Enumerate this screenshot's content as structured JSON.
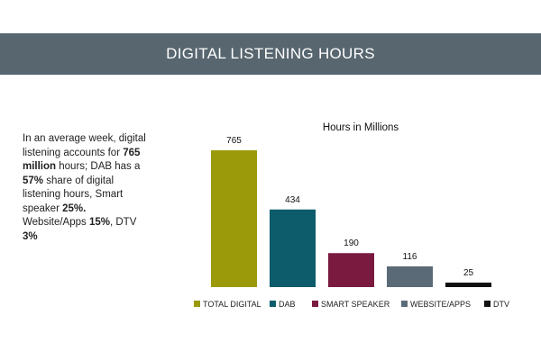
{
  "header": {
    "title": "DIGITAL LISTENING HOURS",
    "background": "#57666f"
  },
  "summary": {
    "parts": [
      {
        "text": "In an average week, digital listening accounts for ",
        "bold": false
      },
      {
        "text": "765 million",
        "bold": true
      },
      {
        "text": " hours; DAB has a ",
        "bold": false
      },
      {
        "text": "57%",
        "bold": true
      },
      {
        "text": " share of digital listening hours, Smart speaker ",
        "bold": false
      },
      {
        "text": "25%.",
        "bold": true
      },
      {
        "text": " Website/Apps ",
        "bold": false
      },
      {
        "text": "15%",
        "bold": true
      },
      {
        "text": ", DTV ",
        "bold": false
      },
      {
        "text": "3%",
        "bold": true
      }
    ]
  },
  "chart_data": {
    "type": "bar",
    "title": "Hours in Millions",
    "categories": [
      "TOTAL DIGITAL",
      "DAB",
      "SMART SPEAKER",
      "WEBSITE/APPS",
      "DTV"
    ],
    "values": [
      765,
      434,
      190,
      116,
      25
    ],
    "colors": [
      "#9a9a0a",
      "#0c5c6c",
      "#7a1a3e",
      "#5a6b77",
      "#111111"
    ],
    "xlabel": "",
    "ylabel": "",
    "ylim": [
      0,
      765
    ],
    "grid": false,
    "legend": "bottom"
  }
}
